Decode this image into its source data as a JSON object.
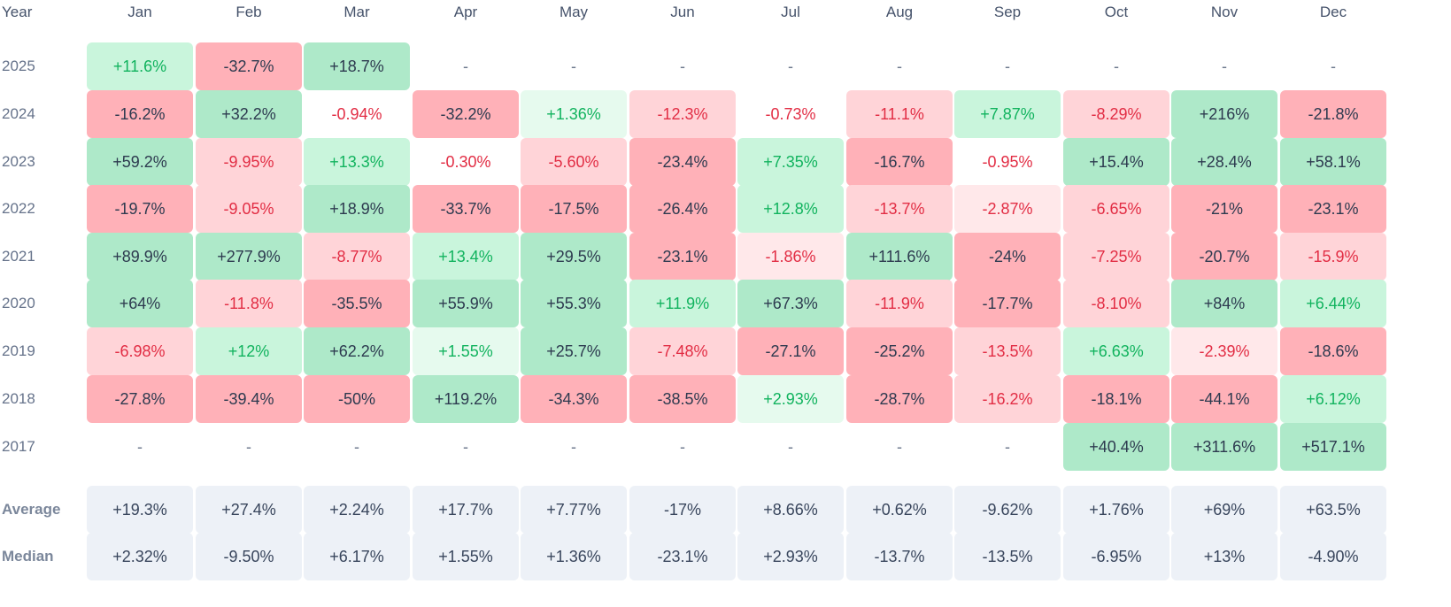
{
  "table": {
    "header": {
      "year_label": "Year",
      "months": [
        "Jan",
        "Feb",
        "Mar",
        "Apr",
        "May",
        "Jun",
        "Jul",
        "Aug",
        "Sep",
        "Oct",
        "Nov",
        "Dec"
      ]
    },
    "rows": [
      {
        "year": "2025",
        "cells": [
          {
            "v": "+11.6%",
            "t": "pos-mid"
          },
          {
            "v": "-32.7%",
            "t": "neg-strong"
          },
          {
            "v": "+18.7%",
            "t": "pos-strong"
          },
          {
            "v": "-",
            "t": "empty"
          },
          {
            "v": "-",
            "t": "empty"
          },
          {
            "v": "-",
            "t": "empty"
          },
          {
            "v": "-",
            "t": "empty"
          },
          {
            "v": "-",
            "t": "empty"
          },
          {
            "v": "-",
            "t": "empty"
          },
          {
            "v": "-",
            "t": "empty"
          },
          {
            "v": "-",
            "t": "empty"
          },
          {
            "v": "-",
            "t": "empty"
          }
        ]
      },
      {
        "year": "2024",
        "cells": [
          {
            "v": "-16.2%",
            "t": "neg-strong"
          },
          {
            "v": "+32.2%",
            "t": "pos-strong"
          },
          {
            "v": "-0.94%",
            "t": "neg-text"
          },
          {
            "v": "-32.2%",
            "t": "neg-strong"
          },
          {
            "v": "+1.36%",
            "t": "pos-light"
          },
          {
            "v": "-12.3%",
            "t": "neg-mid"
          },
          {
            "v": "-0.73%",
            "t": "neg-text"
          },
          {
            "v": "-11.1%",
            "t": "neg-mid"
          },
          {
            "v": "+7.87%",
            "t": "pos-mid"
          },
          {
            "v": "-8.29%",
            "t": "neg-mid"
          },
          {
            "v": "+216%",
            "t": "pos-strong"
          },
          {
            "v": "-21.8%",
            "t": "neg-strong"
          }
        ]
      },
      {
        "year": "2023",
        "cells": [
          {
            "v": "+59.2%",
            "t": "pos-strong"
          },
          {
            "v": "-9.95%",
            "t": "neg-mid"
          },
          {
            "v": "+13.3%",
            "t": "pos-mid"
          },
          {
            "v": "-0.30%",
            "t": "neg-text"
          },
          {
            "v": "-5.60%",
            "t": "neg-mid"
          },
          {
            "v": "-23.4%",
            "t": "neg-strong"
          },
          {
            "v": "+7.35%",
            "t": "pos-mid"
          },
          {
            "v": "-16.7%",
            "t": "neg-strong"
          },
          {
            "v": "-0.95%",
            "t": "neg-text"
          },
          {
            "v": "+15.4%",
            "t": "pos-strong"
          },
          {
            "v": "+28.4%",
            "t": "pos-strong"
          },
          {
            "v": "+58.1%",
            "t": "pos-strong"
          }
        ]
      },
      {
        "year": "2022",
        "cells": [
          {
            "v": "-19.7%",
            "t": "neg-strong"
          },
          {
            "v": "-9.05%",
            "t": "neg-mid"
          },
          {
            "v": "+18.9%",
            "t": "pos-strong"
          },
          {
            "v": "-33.7%",
            "t": "neg-strong"
          },
          {
            "v": "-17.5%",
            "t": "neg-strong"
          },
          {
            "v": "-26.4%",
            "t": "neg-strong"
          },
          {
            "v": "+12.8%",
            "t": "pos-mid"
          },
          {
            "v": "-13.7%",
            "t": "neg-mid"
          },
          {
            "v": "-2.87%",
            "t": "neg-light"
          },
          {
            "v": "-6.65%",
            "t": "neg-mid"
          },
          {
            "v": "-21%",
            "t": "neg-strong"
          },
          {
            "v": "-23.1%",
            "t": "neg-strong"
          }
        ]
      },
      {
        "year": "2021",
        "cells": [
          {
            "v": "+89.9%",
            "t": "pos-strong"
          },
          {
            "v": "+277.9%",
            "t": "pos-strong"
          },
          {
            "v": "-8.77%",
            "t": "neg-mid"
          },
          {
            "v": "+13.4%",
            "t": "pos-mid"
          },
          {
            "v": "+29.5%",
            "t": "pos-strong"
          },
          {
            "v": "-23.1%",
            "t": "neg-strong"
          },
          {
            "v": "-1.86%",
            "t": "neg-light"
          },
          {
            "v": "+111.6%",
            "t": "pos-strong"
          },
          {
            "v": "-24%",
            "t": "neg-strong"
          },
          {
            "v": "-7.25%",
            "t": "neg-mid"
          },
          {
            "v": "-20.7%",
            "t": "neg-strong"
          },
          {
            "v": "-15.9%",
            "t": "neg-mid"
          }
        ]
      },
      {
        "year": "2020",
        "cells": [
          {
            "v": "+64%",
            "t": "pos-strong"
          },
          {
            "v": "-11.8%",
            "t": "neg-mid"
          },
          {
            "v": "-35.5%",
            "t": "neg-strong"
          },
          {
            "v": "+55.9%",
            "t": "pos-strong"
          },
          {
            "v": "+55.3%",
            "t": "pos-strong"
          },
          {
            "v": "+11.9%",
            "t": "pos-mid"
          },
          {
            "v": "+67.3%",
            "t": "pos-strong"
          },
          {
            "v": "-11.9%",
            "t": "neg-mid"
          },
          {
            "v": "-17.7%",
            "t": "neg-strong"
          },
          {
            "v": "-8.10%",
            "t": "neg-mid"
          },
          {
            "v": "+84%",
            "t": "pos-strong"
          },
          {
            "v": "+6.44%",
            "t": "pos-mid"
          }
        ]
      },
      {
        "year": "2019",
        "cells": [
          {
            "v": "-6.98%",
            "t": "neg-mid"
          },
          {
            "v": "+12%",
            "t": "pos-mid"
          },
          {
            "v": "+62.2%",
            "t": "pos-strong"
          },
          {
            "v": "+1.55%",
            "t": "pos-light"
          },
          {
            "v": "+25.7%",
            "t": "pos-strong"
          },
          {
            "v": "-7.48%",
            "t": "neg-mid"
          },
          {
            "v": "-27.1%",
            "t": "neg-strong"
          },
          {
            "v": "-25.2%",
            "t": "neg-strong"
          },
          {
            "v": "-13.5%",
            "t": "neg-mid"
          },
          {
            "v": "+6.63%",
            "t": "pos-mid"
          },
          {
            "v": "-2.39%",
            "t": "neg-light"
          },
          {
            "v": "-18.6%",
            "t": "neg-strong"
          }
        ]
      },
      {
        "year": "2018",
        "cells": [
          {
            "v": "-27.8%",
            "t": "neg-strong"
          },
          {
            "v": "-39.4%",
            "t": "neg-strong"
          },
          {
            "v": "-50%",
            "t": "neg-strong"
          },
          {
            "v": "+119.2%",
            "t": "pos-strong"
          },
          {
            "v": "-34.3%",
            "t": "neg-strong"
          },
          {
            "v": "-38.5%",
            "t": "neg-strong"
          },
          {
            "v": "+2.93%",
            "t": "pos-light"
          },
          {
            "v": "-28.7%",
            "t": "neg-strong"
          },
          {
            "v": "-16.2%",
            "t": "neg-mid"
          },
          {
            "v": "-18.1%",
            "t": "neg-strong"
          },
          {
            "v": "-44.1%",
            "t": "neg-strong"
          },
          {
            "v": "+6.12%",
            "t": "pos-mid"
          }
        ]
      },
      {
        "year": "2017",
        "cells": [
          {
            "v": "-",
            "t": "empty"
          },
          {
            "v": "-",
            "t": "empty"
          },
          {
            "v": "-",
            "t": "empty"
          },
          {
            "v": "-",
            "t": "empty"
          },
          {
            "v": "-",
            "t": "empty"
          },
          {
            "v": "-",
            "t": "empty"
          },
          {
            "v": "-",
            "t": "empty"
          },
          {
            "v": "-",
            "t": "empty"
          },
          {
            "v": "-",
            "t": "empty"
          },
          {
            "v": "+40.4%",
            "t": "pos-strong"
          },
          {
            "v": "+311.6%",
            "t": "pos-strong"
          },
          {
            "v": "+517.1%",
            "t": "pos-strong"
          }
        ]
      }
    ],
    "summary": [
      {
        "label": "Average",
        "cells": [
          "+19.3%",
          "+27.4%",
          "+2.24%",
          "+17.7%",
          "+7.77%",
          "-17%",
          "+8.66%",
          "+0.62%",
          "-9.62%",
          "+1.76%",
          "+69%",
          "+63.5%"
        ]
      },
      {
        "label": "Median",
        "cells": [
          "+2.32%",
          "-9.50%",
          "+6.17%",
          "+1.55%",
          "+1.36%",
          "-23.1%",
          "+2.93%",
          "-13.7%",
          "-13.5%",
          "-6.95%",
          "+13%",
          "-4.90%"
        ]
      }
    ]
  }
}
